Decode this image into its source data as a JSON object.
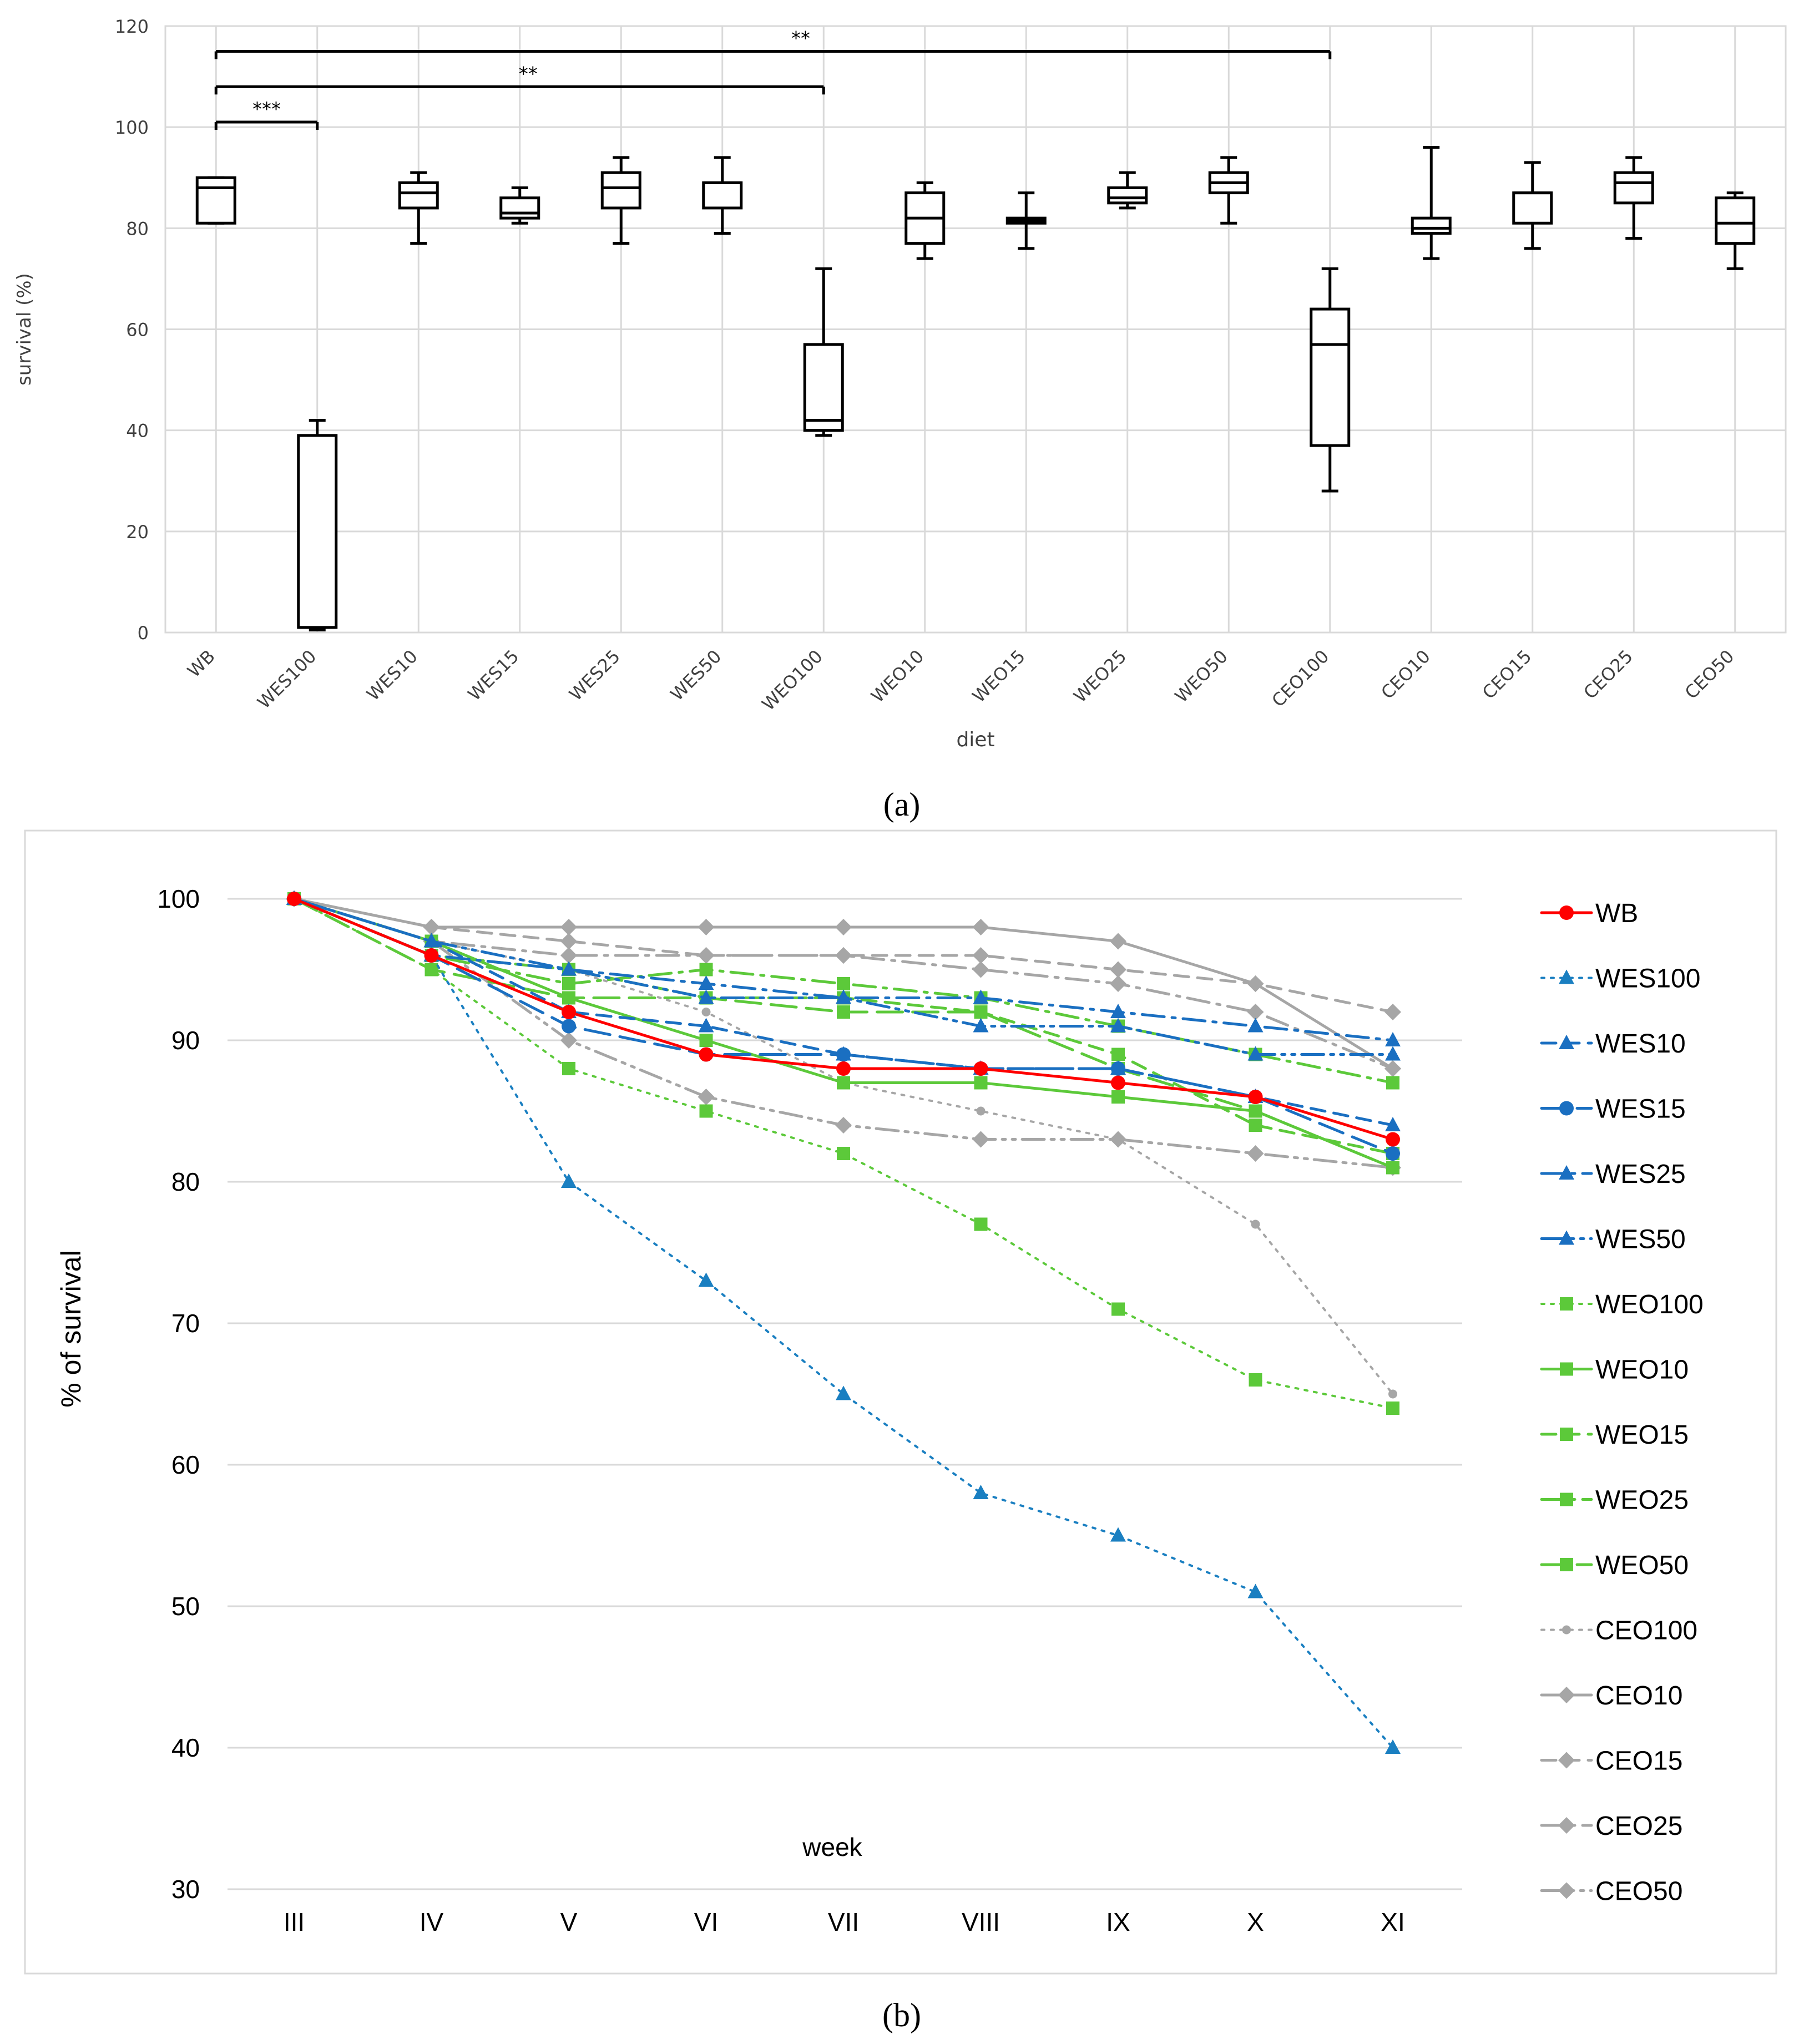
{
  "chart_data": [
    {
      "type": "box",
      "panel_label": "(a)",
      "xlabel": "diet",
      "ylabel": "survival (%)",
      "ylim": [
        0,
        120
      ],
      "yticks": [
        0,
        20,
        40,
        60,
        80,
        100,
        120
      ],
      "grid": true,
      "categories": [
        "WB",
        "WES100",
        "WES10",
        "WES15",
        "WES25",
        "WES50",
        "WEO100",
        "WEO10",
        "WEO15",
        "WEO25",
        "WEO50",
        "CEO100",
        "CEO10",
        "CEO15",
        "CEO25",
        "CEO50"
      ],
      "boxes": [
        {
          "min": 81,
          "q1": 81,
          "median": 88,
          "q3": 90,
          "max": 90
        },
        {
          "min": 0.5,
          "q1": 1,
          "median": 1,
          "q3": 39,
          "max": 42
        },
        {
          "min": 77,
          "q1": 84,
          "median": 87,
          "q3": 89,
          "max": 91
        },
        {
          "min": 81,
          "q1": 82,
          "median": 83,
          "q3": 86,
          "max": 88
        },
        {
          "min": 77,
          "q1": 84,
          "median": 88,
          "q3": 91,
          "max": 94
        },
        {
          "min": 79,
          "q1": 84,
          "median": 89,
          "q3": 89,
          "max": 94
        },
        {
          "min": 39,
          "q1": 40,
          "median": 42,
          "q3": 57,
          "max": 72
        },
        {
          "min": 74,
          "q1": 77,
          "median": 82,
          "q3": 87,
          "max": 89
        },
        {
          "min": 76,
          "q1": 81,
          "median": 81.5,
          "q3": 82,
          "max": 87
        },
        {
          "min": 84,
          "q1": 85,
          "median": 86,
          "q3": 88,
          "max": 91
        },
        {
          "min": 81,
          "q1": 87,
          "median": 89,
          "q3": 91,
          "max": 94
        },
        {
          "min": 28,
          "q1": 37,
          "median": 57,
          "q3": 64,
          "max": 72
        },
        {
          "min": 74,
          "q1": 79,
          "median": 80,
          "q3": 82,
          "max": 96
        },
        {
          "min": 76,
          "q1": 81,
          "median": 87,
          "q3": 87,
          "max": 93
        },
        {
          "min": 78,
          "q1": 85,
          "median": 89,
          "q3": 91,
          "max": 94
        },
        {
          "min": 72,
          "q1": 77,
          "median": 81,
          "q3": 86,
          "max": 87
        }
      ],
      "significance": [
        {
          "from": "WB",
          "to": "WES100",
          "y": 101,
          "label": "***"
        },
        {
          "from": "WB",
          "to": "WEO100",
          "y": 108,
          "label": "**"
        },
        {
          "from": "WB",
          "to": "CEO100",
          "y": 115,
          "label": "**"
        }
      ]
    },
    {
      "type": "line",
      "panel_label": "(b)",
      "xlabel": "week",
      "ylabel": "% of survival",
      "ylim": [
        30,
        100
      ],
      "yticks": [
        30,
        40,
        50,
        60,
        70,
        80,
        90,
        100
      ],
      "grid": true,
      "legend_position": "right",
      "categories": [
        "III",
        "IV",
        "V",
        "VI",
        "VII",
        "VIII",
        "IX",
        "X",
        "XI"
      ],
      "series": [
        {
          "name": "WB",
          "color": "#ff0000",
          "dash": "solid",
          "marker": "circle",
          "width": 5,
          "values": [
            100,
            96,
            92,
            89,
            88,
            88,
            87,
            86,
            83
          ]
        },
        {
          "name": "WES100",
          "color": "#1a7fc1",
          "dash": "dot",
          "marker": "triangle",
          "width": 4,
          "values": [
            100,
            96,
            80,
            73,
            65,
            58,
            55,
            51,
            40
          ]
        },
        {
          "name": "WES10",
          "color": "#1a6fc1",
          "dash": "dash",
          "marker": "triangle",
          "width": 5,
          "values": [
            100,
            97,
            92,
            91,
            89,
            88,
            88,
            86,
            84
          ]
        },
        {
          "name": "WES15",
          "color": "#1a6fc1",
          "dash": "longdash",
          "marker": "circle",
          "width": 5,
          "values": [
            100,
            96,
            91,
            89,
            89,
            88,
            88,
            86,
            82
          ]
        },
        {
          "name": "WES25",
          "color": "#1a6fc1",
          "dash": "dashdot",
          "marker": "triangle",
          "width": 5,
          "values": [
            100,
            96,
            95,
            94,
            93,
            93,
            92,
            91,
            90
          ]
        },
        {
          "name": "WES50",
          "color": "#1a6fc1",
          "dash": "dashdotdot",
          "marker": "triangle",
          "width": 5,
          "values": [
            100,
            97,
            95,
            93,
            93,
            91,
            91,
            89,
            89
          ]
        },
        {
          "name": "WEO100",
          "color": "#5cc93a",
          "dash": "dot",
          "marker": "square",
          "width": 4,
          "values": [
            100,
            95,
            88,
            85,
            82,
            77,
            71,
            66,
            64
          ]
        },
        {
          "name": "WEO10",
          "color": "#5cc93a",
          "dash": "solid",
          "marker": "square",
          "width": 5,
          "values": [
            100,
            97,
            93,
            90,
            87,
            87,
            86,
            85,
            81
          ]
        },
        {
          "name": "WEO15",
          "color": "#5cc93a",
          "dash": "dash",
          "marker": "square",
          "width": 5,
          "values": [
            100,
            96,
            95,
            93,
            93,
            92,
            89,
            84,
            82
          ]
        },
        {
          "name": "WEO25",
          "color": "#5cc93a",
          "dash": "dashdot",
          "marker": "square",
          "width": 5,
          "values": [
            100,
            96,
            94,
            95,
            94,
            93,
            91,
            89,
            87
          ]
        },
        {
          "name": "WEO50",
          "color": "#5cc93a",
          "dash": "longdash",
          "marker": "square",
          "width": 5,
          "values": [
            100,
            95,
            93,
            93,
            92,
            92,
            88,
            85,
            81
          ]
        },
        {
          "name": "CEO100",
          "color": "#a6a6a6",
          "dash": "dot",
          "marker": "smallcircle",
          "width": 4,
          "values": [
            100,
            97,
            95,
            92,
            87,
            85,
            83,
            77,
            65
          ]
        },
        {
          "name": "CEO10",
          "color": "#a6a6a6",
          "dash": "solid",
          "marker": "diamond",
          "width": 5,
          "values": [
            100,
            98,
            98,
            98,
            98,
            98,
            97,
            94,
            88
          ]
        },
        {
          "name": "CEO15",
          "color": "#a6a6a6",
          "dash": "dash",
          "marker": "diamond",
          "width": 5,
          "values": [
            100,
            98,
            97,
            96,
            96,
            96,
            95,
            94,
            92
          ]
        },
        {
          "name": "CEO25",
          "color": "#a6a6a6",
          "dash": "dashdot",
          "marker": "diamond",
          "width": 5,
          "values": [
            100,
            97,
            96,
            96,
            96,
            95,
            94,
            92,
            88
          ]
        },
        {
          "name": "CEO50",
          "color": "#a6a6a6",
          "dash": "dashdotdot",
          "marker": "diamond",
          "width": 5,
          "values": [
            100,
            97,
            90,
            86,
            84,
            83,
            83,
            82,
            81
          ]
        }
      ]
    }
  ]
}
